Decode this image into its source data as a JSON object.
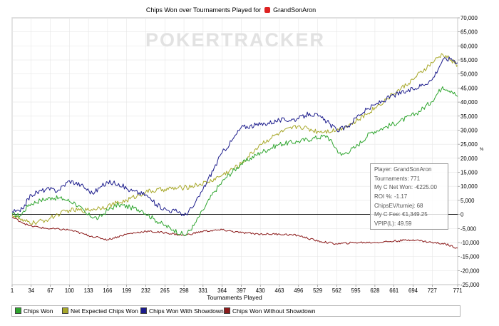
{
  "title": "Chips Won over Tournaments Played for",
  "player_name": "GrandSonAron",
  "watermark": "POKERTRACKER",
  "right_axis_label": "%",
  "infobox": {
    "player": "Player: GrandSonAron",
    "tournaments": "Tournaments: 771",
    "net_won": "My C Net Won: -€225.00",
    "roi": "ROI %: -1.17",
    "chipsev": "ChipsEV/turniej: 68",
    "fee": "My C Fee: €1,349.25",
    "vpip": "VPIP(L): 49.59"
  },
  "colors": {
    "chips_won": "#2ea52e",
    "net_expected": "#a8a82a",
    "with_showdown": "#1c1c8c",
    "without_showdown": "#8b1a1a"
  },
  "chart_data": {
    "type": "line",
    "title": "Chips Won over Tournaments Played for GrandSonAron",
    "xlabel": "Tournaments Played",
    "ylabel": "",
    "xlim": [
      1,
      771
    ],
    "ylim": [
      -25000,
      70000
    ],
    "x_ticks": [
      1,
      34,
      67,
      100,
      133,
      166,
      199,
      232,
      265,
      298,
      331,
      364,
      397,
      430,
      463,
      496,
      529,
      562,
      595,
      628,
      661,
      694,
      727,
      771
    ],
    "y_ticks": [
      -25000,
      -20000,
      -15000,
      -10000,
      -5000,
      0,
      5000,
      10000,
      15000,
      20000,
      25000,
      30000,
      35000,
      40000,
      45000,
      50000,
      55000,
      60000,
      65000,
      70000
    ],
    "y_tick_labels": [
      "-25,000",
      "-20,000",
      "-15,000",
      "-10,000",
      "-5,000",
      "0",
      "5,000",
      "10,000",
      "15,000",
      "20,000",
      "25,000",
      "30,000",
      "35,000",
      "40,000",
      "45,000",
      "50,000",
      "55,000",
      "60,000",
      "65,000",
      "70,000"
    ],
    "grid": true,
    "legend_position": "bottom",
    "series": [
      {
        "name": "Chips Won",
        "color": "#2ea52e",
        "points": [
          [
            1,
            0
          ],
          [
            15,
            -500
          ],
          [
            30,
            3500
          ],
          [
            50,
            5000
          ],
          [
            70,
            6000
          ],
          [
            90,
            5500
          ],
          [
            110,
            4000
          ],
          [
            130,
            0
          ],
          [
            150,
            -1500
          ],
          [
            166,
            1500
          ],
          [
            185,
            3500
          ],
          [
            205,
            2500
          ],
          [
            225,
            1500
          ],
          [
            245,
            -1500
          ],
          [
            265,
            -4000
          ],
          [
            280,
            -5500
          ],
          [
            300,
            -7500
          ],
          [
            315,
            -4000
          ],
          [
            331,
            1500
          ],
          [
            350,
            8000
          ],
          [
            370,
            13000
          ],
          [
            397,
            18000
          ],
          [
            430,
            22000
          ],
          [
            463,
            25000
          ],
          [
            496,
            26000
          ],
          [
            520,
            27000
          ],
          [
            545,
            28000
          ],
          [
            570,
            21000
          ],
          [
            595,
            24000
          ],
          [
            620,
            29000
          ],
          [
            645,
            31000
          ],
          [
            670,
            33000
          ],
          [
            700,
            36000
          ],
          [
            725,
            40000
          ],
          [
            745,
            45500
          ],
          [
            760,
            44000
          ],
          [
            771,
            42000
          ]
        ]
      },
      {
        "name": "Net Expected Chips Won",
        "color": "#a8a82a",
        "points": [
          [
            1,
            0
          ],
          [
            20,
            -2500
          ],
          [
            40,
            -3000
          ],
          [
            60,
            -2000
          ],
          [
            80,
            0
          ],
          [
            100,
            1500
          ],
          [
            130,
            1500
          ],
          [
            166,
            3000
          ],
          [
            199,
            5000
          ],
          [
            232,
            8000
          ],
          [
            265,
            9000
          ],
          [
            298,
            9500
          ],
          [
            320,
            10500
          ],
          [
            340,
            11500
          ],
          [
            364,
            14000
          ],
          [
            397,
            18000
          ],
          [
            430,
            25000
          ],
          [
            463,
            29000
          ],
          [
            496,
            31500
          ],
          [
            529,
            29500
          ],
          [
            562,
            30000
          ],
          [
            595,
            33000
          ],
          [
            628,
            38000
          ],
          [
            661,
            43000
          ],
          [
            694,
            48000
          ],
          [
            727,
            54000
          ],
          [
            745,
            57000
          ],
          [
            760,
            55000
          ],
          [
            771,
            53000
          ]
        ]
      },
      {
        "name": "Chips Won With Showdown",
        "color": "#1c1c8c",
        "points": [
          [
            1,
            1000
          ],
          [
            15,
            1000
          ],
          [
            34,
            7000
          ],
          [
            60,
            9000
          ],
          [
            80,
            8500
          ],
          [
            100,
            12000
          ],
          [
            120,
            10500
          ],
          [
            140,
            7500
          ],
          [
            166,
            11500
          ],
          [
            185,
            11000
          ],
          [
            205,
            8500
          ],
          [
            232,
            7000
          ],
          [
            250,
            3500
          ],
          [
            270,
            1500
          ],
          [
            290,
            1000
          ],
          [
            298,
            -500
          ],
          [
            315,
            3000
          ],
          [
            331,
            9000
          ],
          [
            364,
            22000
          ],
          [
            380,
            26000
          ],
          [
            397,
            31000
          ],
          [
            430,
            32000
          ],
          [
            463,
            33500
          ],
          [
            496,
            34000
          ],
          [
            515,
            36000
          ],
          [
            530,
            35000
          ],
          [
            545,
            33000
          ],
          [
            562,
            30000
          ],
          [
            580,
            31000
          ],
          [
            600,
            35500
          ],
          [
            628,
            39000
          ],
          [
            661,
            42500
          ],
          [
            694,
            44500
          ],
          [
            727,
            48000
          ],
          [
            745,
            55000
          ],
          [
            760,
            55500
          ],
          [
            771,
            54000
          ]
        ]
      },
      {
        "name": "Chips Won Without Showdown",
        "color": "#8b1a1a",
        "points": [
          [
            1,
            -1000
          ],
          [
            30,
            -4000
          ],
          [
            60,
            -5000
          ],
          [
            100,
            -5500
          ],
          [
            133,
            -7500
          ],
          [
            166,
            -9000
          ],
          [
            199,
            -7000
          ],
          [
            232,
            -6000
          ],
          [
            265,
            -6500
          ],
          [
            298,
            -7500
          ],
          [
            331,
            -6000
          ],
          [
            364,
            -5500
          ],
          [
            397,
            -6500
          ],
          [
            430,
            -7000
          ],
          [
            463,
            -7000
          ],
          [
            496,
            -7500
          ],
          [
            529,
            -9500
          ],
          [
            562,
            -10500
          ],
          [
            595,
            -10000
          ],
          [
            628,
            -10000
          ],
          [
            661,
            -9500
          ],
          [
            694,
            -9000
          ],
          [
            727,
            -10000
          ],
          [
            750,
            -10500
          ],
          [
            771,
            -12000
          ]
        ]
      }
    ]
  }
}
